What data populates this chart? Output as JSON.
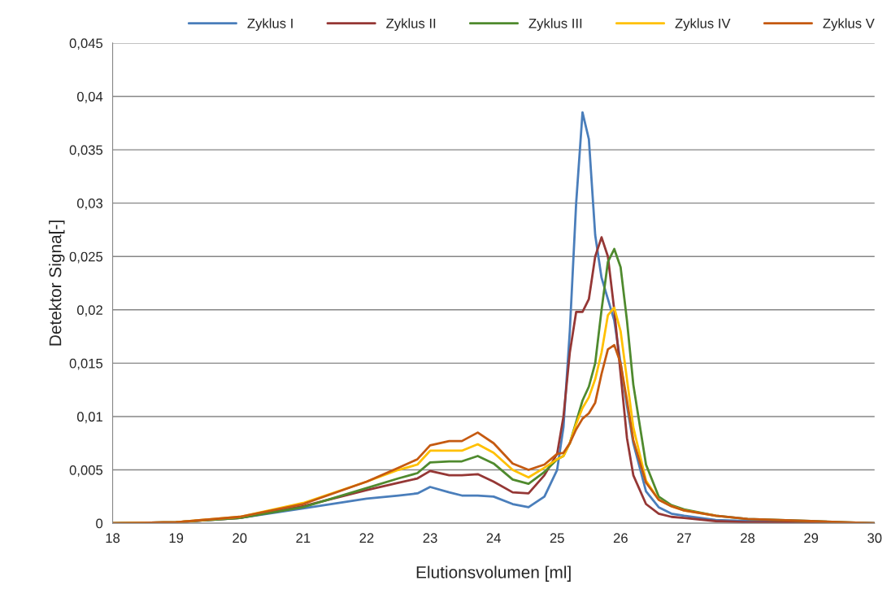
{
  "chart_data": {
    "type": "line",
    "xlabel": "Elutionsvolumen [ml]",
    "ylabel": "Detektor Signa[-]",
    "x": [
      18,
      19,
      20,
      21,
      22,
      22.5,
      22.8,
      23,
      23.3,
      23.5,
      23.75,
      24,
      24.3,
      24.55,
      24.8,
      25,
      25.1,
      25.2,
      25.3,
      25.4,
      25.5,
      25.6,
      25.7,
      25.8,
      25.9,
      26,
      26.1,
      26.2,
      26.4,
      26.6,
      26.8,
      27,
      27.5,
      28,
      29,
      30
    ],
    "series": [
      {
        "name": "Zyklus I",
        "color": "#4a7ebb",
        "values": [
          0,
          0.0001,
          0.0005,
          0.0014,
          0.0023,
          0.0026,
          0.0028,
          0.0034,
          0.0029,
          0.0026,
          0.0026,
          0.0025,
          0.0018,
          0.0015,
          0.0025,
          0.005,
          0.009,
          0.018,
          0.03,
          0.0385,
          0.036,
          0.027,
          0.023,
          0.021,
          0.019,
          0.015,
          0.011,
          0.0075,
          0.003,
          0.0015,
          0.0009,
          0.0007,
          0.0003,
          0.0002,
          0.0001,
          0
        ]
      },
      {
        "name": "Zyklus II",
        "color": "#953735",
        "values": [
          0,
          0.0001,
          0.0005,
          0.0016,
          0.0031,
          0.0038,
          0.0042,
          0.0049,
          0.0045,
          0.0045,
          0.0046,
          0.0039,
          0.0029,
          0.0028,
          0.0045,
          0.0065,
          0.01,
          0.016,
          0.0198,
          0.0198,
          0.021,
          0.025,
          0.0268,
          0.025,
          0.02,
          0.014,
          0.008,
          0.0045,
          0.0018,
          0.0009,
          0.0006,
          0.0005,
          0.0002,
          0.0001,
          0.0001,
          0
        ]
      },
      {
        "name": "Zyklus III",
        "color": "#4f8a2e",
        "values": [
          0,
          0.0001,
          0.0005,
          0.0015,
          0.0033,
          0.0042,
          0.0047,
          0.0057,
          0.0058,
          0.0058,
          0.0063,
          0.0056,
          0.0041,
          0.0037,
          0.0048,
          0.006,
          0.0063,
          0.0075,
          0.0095,
          0.0115,
          0.0128,
          0.015,
          0.02,
          0.0245,
          0.0257,
          0.024,
          0.019,
          0.013,
          0.0055,
          0.0025,
          0.0017,
          0.0013,
          0.0007,
          0.0004,
          0.0002,
          0
        ]
      },
      {
        "name": "Zyklus IV",
        "color": "#ffc000",
        "values": [
          0,
          0.0001,
          0.0006,
          0.0019,
          0.0039,
          0.005,
          0.0055,
          0.0068,
          0.0068,
          0.0068,
          0.0074,
          0.0066,
          0.005,
          0.0043,
          0.0052,
          0.006,
          0.0063,
          0.0075,
          0.0093,
          0.0108,
          0.0118,
          0.0135,
          0.016,
          0.0195,
          0.0202,
          0.018,
          0.0135,
          0.009,
          0.004,
          0.0022,
          0.0016,
          0.0012,
          0.0007,
          null,
          null,
          null
        ]
      },
      {
        "name": "Zyklus V",
        "color": "#c55a11",
        "values": [
          0,
          0.0001,
          0.0006,
          0.0018,
          0.0039,
          0.0052,
          0.006,
          0.0073,
          0.0077,
          0.0077,
          0.0085,
          0.0075,
          0.0056,
          0.005,
          0.0055,
          0.0065,
          0.0066,
          0.0075,
          0.0088,
          0.0098,
          0.0103,
          0.0113,
          0.014,
          0.0163,
          0.0167,
          0.015,
          0.0115,
          0.0078,
          0.0038,
          0.0022,
          0.0016,
          0.0012,
          0.0007,
          0.0004,
          0.0002,
          0
        ]
      }
    ],
    "xlim": [
      18,
      30
    ],
    "xticks": [
      18,
      19,
      20,
      21,
      22,
      23,
      24,
      25,
      26,
      27,
      28,
      29,
      30
    ],
    "ylim": [
      0,
      0.045
    ],
    "yticks": [
      0,
      {
        "value": 0.005,
        "label": "0,005"
      },
      {
        "value": 0.01,
        "label": "0,01"
      },
      {
        "value": 0.015,
        "label": "0,015"
      },
      {
        "value": 0.02,
        "label": "0,02"
      },
      {
        "value": 0.025,
        "label": "0,025"
      },
      {
        "value": 0.03,
        "label": "0,03"
      },
      {
        "value": 0.035,
        "label": "0,035"
      },
      {
        "value": 0.04,
        "label": "0,04"
      },
      {
        "value": 0.045,
        "label": "0,045"
      }
    ],
    "grid": "y",
    "legend": "top",
    "marker": "none",
    "line_style": "solid"
  }
}
